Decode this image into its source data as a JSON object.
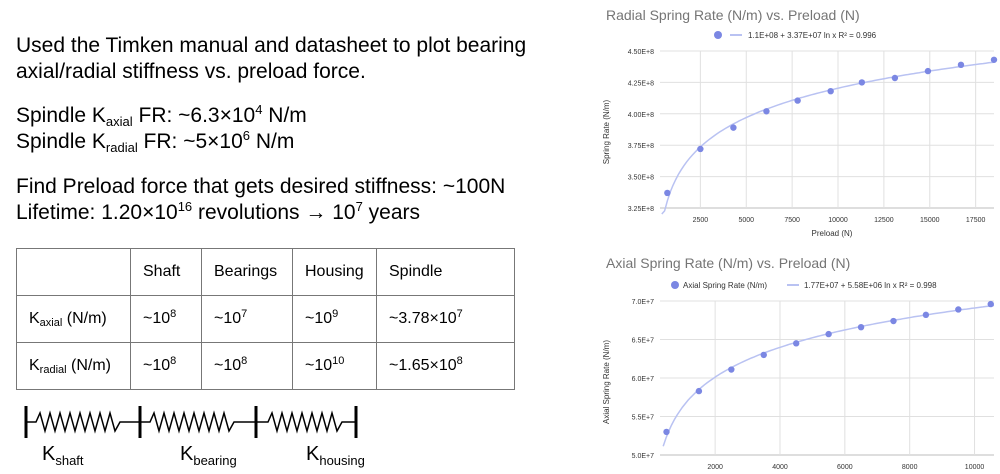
{
  "slide": {
    "intro_line1": "Used the Timken manual and datasheet to plot bearing",
    "intro_line2": "axial/radial stiffness vs. preload force.",
    "spindle_axial": {
      "prefix": "Spindle K",
      "sub": "axial",
      "mid": " FR: ~6.3×10",
      "sup": "4",
      "suffix": " N/m"
    },
    "spindle_radial": {
      "prefix": "Spindle K",
      "sub": "radial",
      "mid": " FR: ~5×10",
      "sup": "6",
      "suffix": " N/m"
    },
    "preload_line": "Find Preload force that gets desired stiffness: ~100N",
    "lifetime": {
      "prefix": "Lifetime: 1.20×10",
      "sup1": "16",
      "mid": " revolutions → 10",
      "sup2": "7",
      "suffix": " years"
    }
  },
  "table": {
    "headers": [
      "",
      "Shaft",
      "Bearings",
      "Housing",
      "Spindle"
    ],
    "rows": [
      {
        "k": "K",
        "sub": "axial",
        "unit": " (N/m)",
        "cells": [
          {
            "b": "~10",
            "e": "8"
          },
          {
            "b": "~10",
            "e": "7"
          },
          {
            "b": "~10",
            "e": "9"
          },
          {
            "b": "~3.78×10",
            "e": "7"
          }
        ]
      },
      {
        "k": "K",
        "sub": "radial",
        "unit": " (N/m)",
        "cells": [
          {
            "b": "~10",
            "e": "8"
          },
          {
            "b": "~10",
            "e": "8"
          },
          {
            "b": "~10",
            "e": "10"
          },
          {
            "b": "~1.65×10",
            "e": "8"
          }
        ]
      }
    ]
  },
  "springs": {
    "labels": [
      {
        "k": "K",
        "sub": "shaft"
      },
      {
        "k": "K",
        "sub": "bearing"
      },
      {
        "k": "K",
        "sub": "housing"
      }
    ]
  },
  "colors": {
    "point": "#7b87e3",
    "trend": "#b9c2f2",
    "grid": "#e0e0e0",
    "title": "#757575"
  },
  "chart_data": [
    {
      "type": "scatter",
      "title": "Radial Spring Rate (N/m) vs. Preload (N)",
      "xlabel": "Preload (N)",
      "ylabel": "Spring Rate (N/m)",
      "legend_position": "top",
      "legend_series": "",
      "trendline_label": "1.1E+08 + 3.37E+07 ln x R² = 0.996",
      "trendline": {
        "a": 110000000,
        "b": 33700000
      },
      "xlim": [
        300,
        18500
      ],
      "ylim": [
        325000000,
        450000000
      ],
      "xticks": [
        2500,
        5000,
        7500,
        10000,
        12500,
        15000,
        17500
      ],
      "xtick_labels": [
        "2500",
        "5000",
        "7500",
        "10000",
        "12500",
        "15000",
        "17500"
      ],
      "yticks": [
        325000000,
        350000000,
        375000000,
        400000000,
        425000000,
        450000000
      ],
      "ytick_labels": [
        "3.25E+8",
        "3.50E+8",
        "3.75E+8",
        "4.00E+8",
        "4.25E+8",
        "4.50E+8"
      ],
      "grid": true,
      "points": [
        {
          "x": 700,
          "y": 337000000
        },
        {
          "x": 2500,
          "y": 372000000
        },
        {
          "x": 4300,
          "y": 389000000
        },
        {
          "x": 6100,
          "y": 402000000
        },
        {
          "x": 7800,
          "y": 410500000
        },
        {
          "x": 9600,
          "y": 418000000
        },
        {
          "x": 11300,
          "y": 425000000
        },
        {
          "x": 13100,
          "y": 428500000
        },
        {
          "x": 14900,
          "y": 434000000
        },
        {
          "x": 16700,
          "y": 439000000
        },
        {
          "x": 18500,
          "y": 443000000
        }
      ]
    },
    {
      "type": "scatter",
      "title": "Axial Spring Rate (N/m) vs. Preload (N)",
      "xlabel": "",
      "ylabel": "Axial Spring Rate (N/m)",
      "legend_position": "top",
      "legend_series": "Axial Spring Rate (N/m)",
      "trendline_label": "1.77E+07 + 5.58E+06 ln x R² = 0.998",
      "trendline": {
        "a": 17700000,
        "b": 5580000
      },
      "xlim": [
        300,
        10600
      ],
      "ylim": [
        50000000,
        70000000
      ],
      "xticks": [
        2000,
        4000,
        6000,
        8000,
        10000
      ],
      "xtick_labels": [
        "2000",
        "4000",
        "6000",
        "8000",
        "10000"
      ],
      "yticks": [
        50000000,
        55000000,
        60000000,
        65000000,
        70000000
      ],
      "ytick_labels": [
        "5.0E+7",
        "5.5E+7",
        "6.0E+7",
        "6.5E+7",
        "7.0E+7"
      ],
      "grid": true,
      "points": [
        {
          "x": 500,
          "y": 53000000
        },
        {
          "x": 1500,
          "y": 58300000
        },
        {
          "x": 2500,
          "y": 61100000
        },
        {
          "x": 3500,
          "y": 63000000
        },
        {
          "x": 4500,
          "y": 64500000
        },
        {
          "x": 5500,
          "y": 65700000
        },
        {
          "x": 6500,
          "y": 66600000
        },
        {
          "x": 7500,
          "y": 67400000
        },
        {
          "x": 8500,
          "y": 68200000
        },
        {
          "x": 9500,
          "y": 68900000
        },
        {
          "x": 10500,
          "y": 69600000
        }
      ]
    }
  ]
}
